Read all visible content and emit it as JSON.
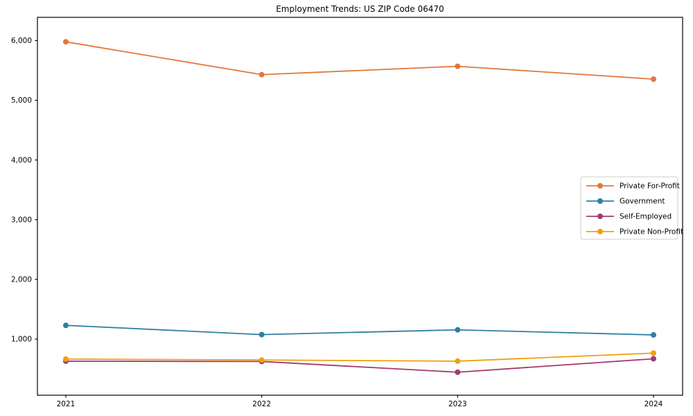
{
  "figure": {
    "background": "#ffffff",
    "frame_color": "#000000"
  },
  "chart_data": {
    "type": "line",
    "title": "Employment Trends: US ZIP Code 06470",
    "xlabel": "",
    "ylabel": "",
    "x": [
      2021,
      2022,
      2023,
      2024
    ],
    "xtick_labels": [
      "2021",
      "2022",
      "2023",
      "2024"
    ],
    "series": [
      {
        "name": "Private For-Profit",
        "color": "#e2773e",
        "values": [
          5980,
          5430,
          5570,
          5355
        ]
      },
      {
        "name": "Government",
        "color": "#2f7fa2",
        "values": [
          1230,
          1075,
          1155,
          1070
        ]
      },
      {
        "name": "Self-Employed",
        "color": "#a23a6e",
        "values": [
          630,
          625,
          445,
          670
        ]
      },
      {
        "name": "Private Non-Profit",
        "color": "#f0a00c",
        "values": [
          665,
          650,
          630,
          765
        ]
      }
    ],
    "ylim": [
      60,
      6390
    ],
    "yticks": [
      1000,
      2000,
      3000,
      4000,
      5000,
      6000
    ],
    "ytick_labels": [
      "1,000",
      "2,000",
      "3,000",
      "4,000",
      "5,000",
      "6,000"
    ],
    "grid": false,
    "legend_position": "center right",
    "marker": "circle",
    "line_width": 1.8,
    "marker_radius": 4
  }
}
